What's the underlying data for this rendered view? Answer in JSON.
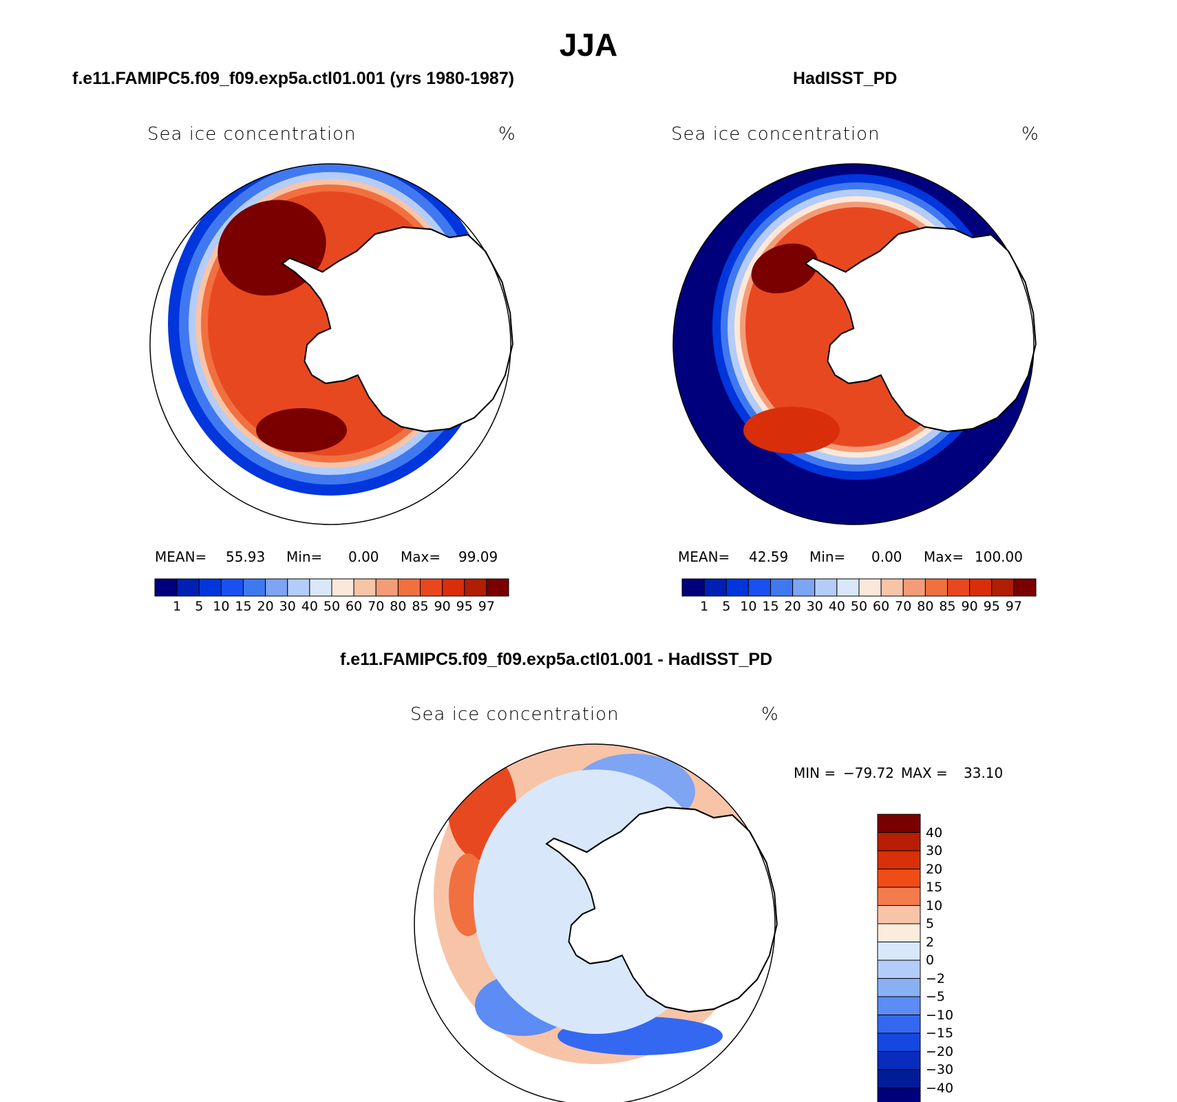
{
  "figure_title": "JJA",
  "panels": [
    {
      "title": "f.e11.FAMIPC5.f09_f09.exp5a.ctl01.001 (yrs 1980-1987)",
      "variable": "Sea ice concentration",
      "units": "%",
      "stats": {
        "mean_label": "MEAN=",
        "mean": "55.93",
        "min_label": "Min=",
        "min": "0.00",
        "max_label": "Max=",
        "max": "99.09"
      }
    },
    {
      "title": "HadISST_PD",
      "variable": "Sea ice concentration",
      "units": "%",
      "stats": {
        "mean_label": "MEAN=",
        "mean": "42.59",
        "min_label": "Min=",
        "min": "0.00",
        "max_label": "Max=",
        "max": "100.00"
      }
    },
    {
      "title": "f.e11.FAMIPC5.f09_f09.exp5a.ctl01.001 - HadISST_PD",
      "variable": "Sea ice concentration",
      "units": "%",
      "stats": {
        "min_label": "MIN =",
        "min": "−79.72",
        "max_label": "MAX =",
        "max": "33.10"
      }
    }
  ],
  "abs_colorbar": {
    "levels": [
      "1",
      "5",
      "10",
      "15",
      "20",
      "30",
      "40",
      "50",
      "60",
      "70",
      "80",
      "85",
      "90",
      "95",
      "97"
    ],
    "colors": [
      "#00007d",
      "#0020b4",
      "#0036dc",
      "#1a50f0",
      "#4078f0",
      "#7ea4f4",
      "#b4ccf8",
      "#d8e8fa",
      "#fce8da",
      "#f8c4a8",
      "#f49c78",
      "#f07040",
      "#e84820",
      "#d82e0a",
      "#b01e04",
      "#7a0000"
    ]
  },
  "diff_colorbar": {
    "levels": [
      "40",
      "30",
      "20",
      "15",
      "10",
      "5",
      "2",
      "0",
      "−2",
      "−5",
      "−10",
      "−15",
      "−20",
      "−30",
      "−40"
    ],
    "colors": [
      "#7a0000",
      "#b81e04",
      "#d83008",
      "#f04c18",
      "#f47c4c",
      "#f8c4a8",
      "#fcecdc",
      "#d8e8fa",
      "#b4ccf8",
      "#8ab0f4",
      "#5c8cf4",
      "#3468f0",
      "#1448e0",
      "#0a2cbc",
      "#021c98",
      "#00007d"
    ]
  }
}
